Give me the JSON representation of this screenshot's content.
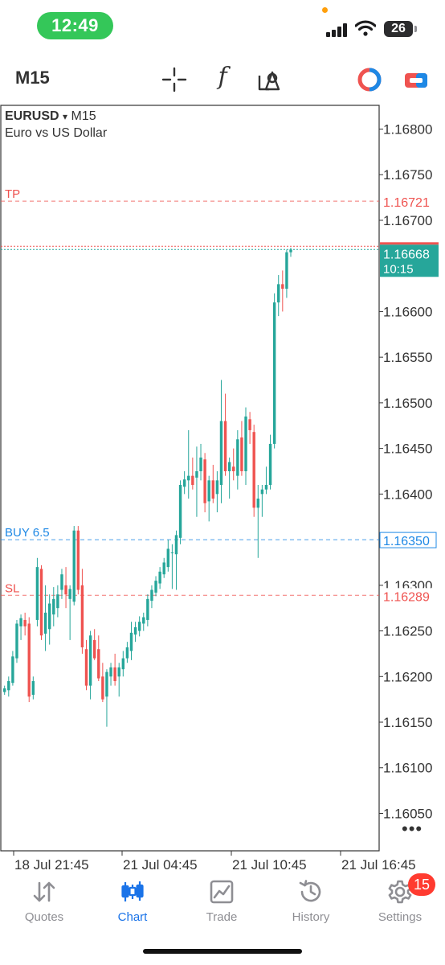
{
  "status_bar": {
    "time": "12:49",
    "battery": "26"
  },
  "toolbar": {
    "timeframe": "M15",
    "icons": [
      "crosshair-icon",
      "indicator-f-icon",
      "objects-icon",
      "mt-logo-icon",
      "trade-toggle-icon"
    ],
    "f_glyph": "f"
  },
  "chart": {
    "symbol": "EURUSD",
    "symbol_arrow": "▾",
    "timeframe": "M15",
    "description": "Euro vs US Dollar",
    "more": "•••",
    "colors": {
      "up": "#26a69a",
      "down": "#ef5350",
      "tp_sl": "#ef5350",
      "entry": "#1e88e5",
      "price": "#26a69a"
    }
  },
  "chart_data": {
    "type": "candlestick",
    "y_ticks": [
      "1.16800",
      "1.16750",
      "1.16700",
      "1.16600",
      "1.16550",
      "1.16500",
      "1.16450",
      "1.16400",
      "1.16300",
      "1.16250",
      "1.16200",
      "1.16150",
      "1.16100",
      "1.16050"
    ],
    "x_ticks": [
      "18 Jul 21:45",
      "21 Jul 04:45",
      "21 Jul 10:45",
      "21 Jul 16:45"
    ],
    "levels": [
      {
        "label": "TP",
        "price": 1.16721,
        "price_label": "1.16721",
        "kind": "tp"
      },
      {
        "label": "BUY 6.5",
        "price": 1.1635,
        "price_label": "1.16350",
        "kind": "entry"
      },
      {
        "label": "SL",
        "price": 1.16289,
        "price_label": "1.16289",
        "kind": "sl"
      }
    ],
    "current": {
      "price": 1.16668,
      "price_label": "1.16668",
      "countdown": "10:15"
    },
    "ylim": [
      1.16009,
      1.16826
    ],
    "candles": [
      [
        1.16183,
        1.1619,
        1.1618,
        1.16187
      ],
      [
        1.16185,
        1.162,
        1.16178,
        1.16195
      ],
      [
        1.16193,
        1.16228,
        1.1619,
        1.16222
      ],
      [
        1.1622,
        1.16262,
        1.16215,
        1.16258
      ],
      [
        1.16255,
        1.16268,
        1.1624,
        1.16264
      ],
      [
        1.16262,
        1.1627,
        1.16245,
        1.16255
      ],
      [
        1.16258,
        1.16265,
        1.16172,
        1.16178
      ],
      [
        1.1618,
        1.162,
        1.16175,
        1.16195
      ],
      [
        1.16262,
        1.1633,
        1.16255,
        1.1632
      ],
      [
        1.16318,
        1.16322,
        1.1624,
        1.16245
      ],
      [
        1.16247,
        1.163,
        1.16228,
        1.1627
      ],
      [
        1.16252,
        1.1629,
        1.16235,
        1.1628
      ],
      [
        1.16268,
        1.16298,
        1.16255,
        1.16285
      ],
      [
        1.16275,
        1.163,
        1.16265,
        1.1629
      ],
      [
        1.16295,
        1.16318,
        1.16285,
        1.16312
      ],
      [
        1.163,
        1.1632,
        1.16275,
        1.1629
      ],
      [
        1.16285,
        1.163,
        1.1624,
        1.16296
      ],
      [
        1.16282,
        1.16365,
        1.16278,
        1.1636
      ],
      [
        1.1636,
        1.16365,
        1.1629,
        1.16295
      ],
      [
        1.163,
        1.16318,
        1.16225,
        1.16232
      ],
      [
        1.1623,
        1.1624,
        1.16185,
        1.1619
      ],
      [
        1.1619,
        1.1625,
        1.16175,
        1.16245
      ],
      [
        1.1624,
        1.16252,
        1.16218,
        1.1622
      ],
      [
        1.1623,
        1.16245,
        1.16195,
        1.16198
      ],
      [
        1.162,
        1.16215,
        1.16172,
        1.16175
      ],
      [
        1.16178,
        1.16208,
        1.16145,
        1.16205
      ],
      [
        1.162,
        1.16215,
        1.1619,
        1.1621
      ],
      [
        1.1621,
        1.16225,
        1.1619,
        1.16195
      ],
      [
        1.162,
        1.16215,
        1.16178,
        1.1621
      ],
      [
        1.16208,
        1.16228,
        1.162,
        1.1622
      ],
      [
        1.1622,
        1.16238,
        1.16215,
        1.16232
      ],
      [
        1.16228,
        1.1626,
        1.16218,
        1.16248
      ],
      [
        1.16246,
        1.1626,
        1.16238,
        1.16254
      ],
      [
        1.1625,
        1.16266,
        1.16244,
        1.1626
      ],
      [
        1.16258,
        1.1627,
        1.1625,
        1.16265
      ],
      [
        1.16262,
        1.1629,
        1.16255,
        1.16285
      ],
      [
        1.16283,
        1.163,
        1.16275,
        1.16295
      ],
      [
        1.16292,
        1.1631,
        1.16288,
        1.16305
      ],
      [
        1.16302,
        1.1632,
        1.16296,
        1.16315
      ],
      [
        1.16312,
        1.1633,
        1.16308,
        1.16325
      ],
      [
        1.1632,
        1.1635,
        1.16315,
        1.1634
      ],
      [
        1.16336,
        1.16345,
        1.16296,
        1.16336
      ],
      [
        1.16334,
        1.1636,
        1.16295,
        1.16355
      ],
      [
        1.16352,
        1.16415,
        1.16345,
        1.1641
      ],
      [
        1.16408,
        1.16425,
        1.164,
        1.16416
      ],
      [
        1.16415,
        1.1647,
        1.16395,
        1.1642
      ],
      [
        1.1642,
        1.1644,
        1.16405,
        1.1641
      ],
      [
        1.16418,
        1.16452,
        1.16375,
        1.16425
      ],
      [
        1.16425,
        1.16455,
        1.16415,
        1.1644
      ],
      [
        1.16438,
        1.16445,
        1.1638,
        1.1639
      ],
      [
        1.16392,
        1.1642,
        1.1637,
        1.16415
      ],
      [
        1.16415,
        1.16432,
        1.1639,
        1.16395
      ],
      [
        1.164,
        1.16425,
        1.1638,
        1.16415
      ],
      [
        1.1641,
        1.16525,
        1.1639,
        1.1648
      ],
      [
        1.1648,
        1.1651,
        1.1642,
        1.16425
      ],
      [
        1.16425,
        1.1644,
        1.16395,
        1.16435
      ],
      [
        1.1643,
        1.1645,
        1.16415,
        1.16425
      ],
      [
        1.1642,
        1.1647,
        1.16405,
        1.1646
      ],
      [
        1.16462,
        1.1648,
        1.1642,
        1.16425
      ],
      [
        1.16425,
        1.16495,
        1.1641,
        1.16485
      ],
      [
        1.16482,
        1.1649,
        1.16455,
        1.1647
      ],
      [
        1.16468,
        1.16476,
        1.16375,
        1.16385
      ],
      [
        1.16385,
        1.1641,
        1.1633,
        1.16395
      ],
      [
        1.164,
        1.1641,
        1.16375,
        1.16405
      ],
      [
        1.16405,
        1.1643,
        1.164,
        1.1641
      ],
      [
        1.1641,
        1.16465,
        1.16405,
        1.16455
      ],
      [
        1.16455,
        1.1662,
        1.1645,
        1.1661
      ],
      [
        1.1661,
        1.1664,
        1.16595,
        1.1663
      ],
      [
        1.1663,
        1.16645,
        1.166,
        1.16625
      ],
      [
        1.16625,
        1.16668,
        1.16615,
        1.16665
      ],
      [
        1.16665,
        1.1667,
        1.1666,
        1.16668
      ]
    ]
  },
  "tabs": [
    {
      "label": "Quotes",
      "icon": "quotes-arrows-icon",
      "active": false
    },
    {
      "label": "Chart",
      "icon": "chart-candles-icon",
      "active": true
    },
    {
      "label": "Trade",
      "icon": "trade-chart-icon",
      "active": false
    },
    {
      "label": "History",
      "icon": "history-clock-icon",
      "active": false
    },
    {
      "label": "Settings",
      "icon": "settings-gear-icon",
      "active": false,
      "badge": "15"
    }
  ]
}
